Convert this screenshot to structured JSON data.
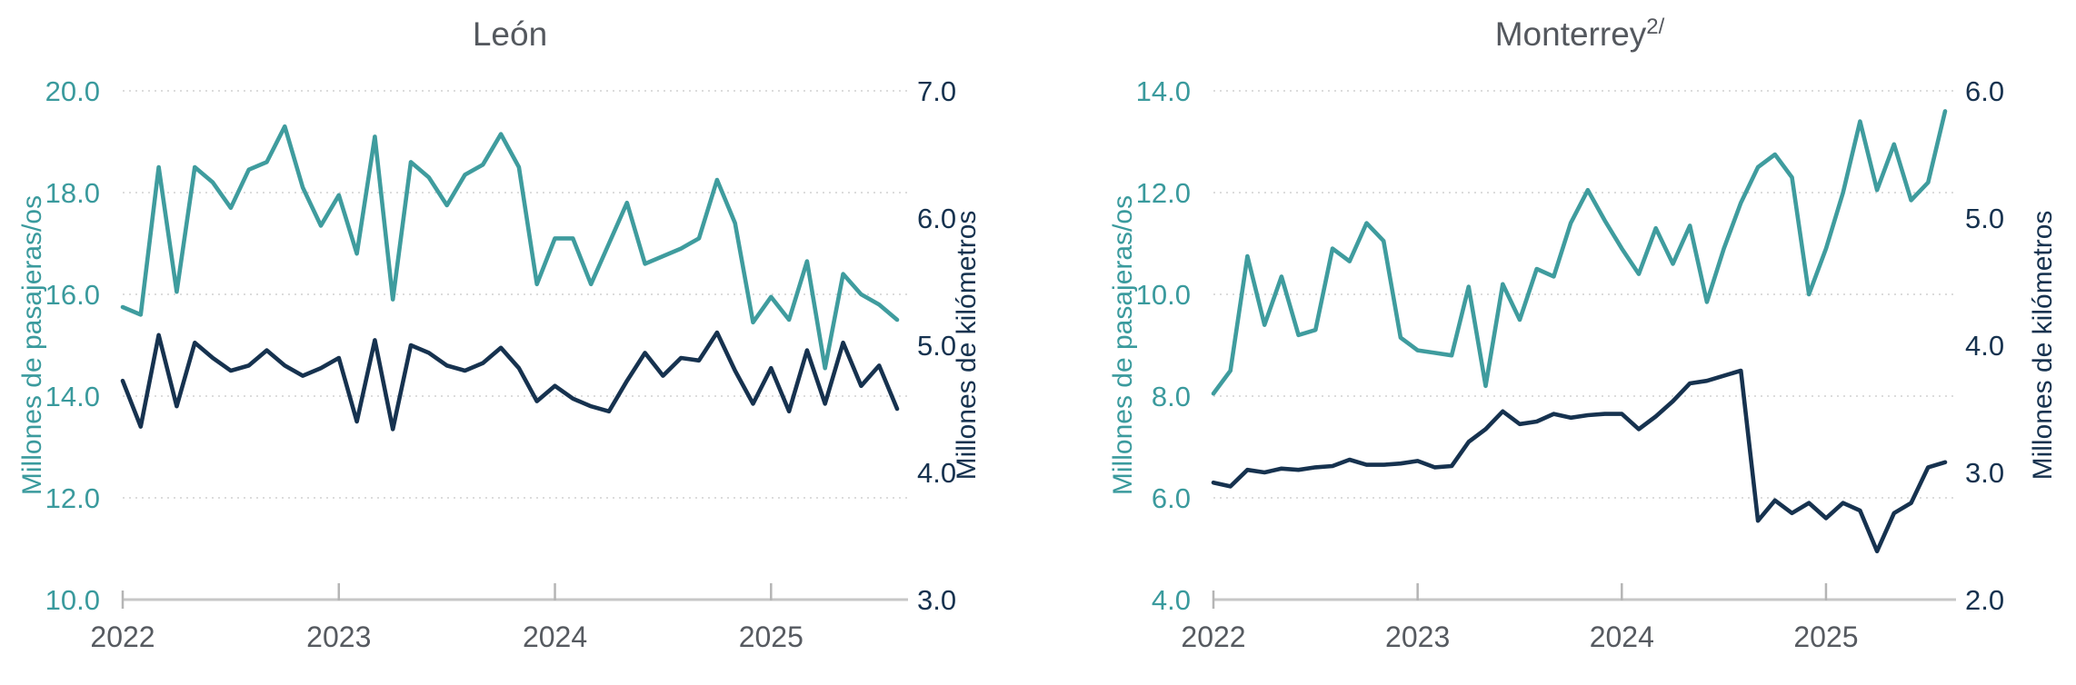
{
  "page": {
    "background": "#ffffff"
  },
  "colors": {
    "passengers_line": "#3f9c9e",
    "kilometers_line": "#16324f",
    "title_text": "#54585e",
    "axis_line": "#c7c7c7",
    "gridline": "#d0d0d0"
  },
  "chart_data": [
    {
      "type": "line",
      "title": "León",
      "title_suffix": "",
      "left_axis": {
        "title": "Millones de pasajeras/os",
        "min": 10,
        "max": 20,
        "ticks": [
          "20.0",
          "18.0",
          "16.0",
          "14.0",
          "12.0",
          "10.0"
        ],
        "color": "#3a9a9d"
      },
      "right_axis": {
        "title": "Millones de kilómetros",
        "min": 3,
        "max": 7,
        "ticks": [
          "7.0",
          "6.0",
          "5.0",
          "4.0",
          "3.0"
        ],
        "color": "#16324f"
      },
      "x_axis": {
        "ticks": [
          "2022",
          "2023",
          "2024",
          "2025"
        ],
        "tick_month_index": [
          0,
          12,
          24,
          36
        ]
      },
      "grid": "dotted horizontal at left-axis ticks",
      "legend": "none",
      "x": [
        "2022-01",
        "2022-02",
        "2022-03",
        "2022-04",
        "2022-05",
        "2022-06",
        "2022-07",
        "2022-08",
        "2022-09",
        "2022-10",
        "2022-11",
        "2022-12",
        "2023-01",
        "2023-02",
        "2023-03",
        "2023-04",
        "2023-05",
        "2023-06",
        "2023-07",
        "2023-08",
        "2023-09",
        "2023-10",
        "2023-11",
        "2023-12",
        "2024-01",
        "2024-02",
        "2024-03",
        "2024-04",
        "2024-05",
        "2024-06",
        "2024-07",
        "2024-08",
        "2024-09",
        "2024-10",
        "2024-11",
        "2024-12",
        "2025-01",
        "2025-02",
        "2025-03",
        "2025-04",
        "2025-05",
        "2025-06",
        "2025-07",
        "2025-08"
      ],
      "series": [
        {
          "name": "Millones de pasajeras/os",
          "axis": "left",
          "color": "#3f9c9e",
          "values": [
            15.75,
            15.6,
            18.5,
            16.05,
            18.5,
            18.2,
            17.7,
            18.45,
            18.6,
            19.3,
            18.1,
            17.35,
            17.95,
            16.8,
            19.1,
            15.9,
            18.6,
            18.3,
            17.75,
            18.35,
            18.55,
            19.15,
            18.5,
            16.2,
            17.1,
            17.1,
            16.2,
            17.0,
            17.8,
            16.6,
            16.75,
            16.9,
            17.1,
            18.25,
            17.4,
            15.45,
            15.95,
            15.5,
            16.65,
            14.55,
            16.4,
            16.0,
            15.8,
            15.5
          ]
        },
        {
          "name": "Millones de kilómetros",
          "axis": "right",
          "color": "#16324f",
          "values": [
            4.72,
            4.36,
            5.08,
            4.52,
            5.02,
            4.9,
            4.8,
            4.84,
            4.96,
            4.84,
            4.76,
            4.82,
            4.9,
            4.4,
            5.04,
            4.34,
            5.0,
            4.94,
            4.84,
            4.8,
            4.86,
            4.98,
            4.82,
            4.56,
            4.68,
            4.58,
            4.52,
            4.48,
            4.72,
            4.94,
            4.76,
            4.9,
            4.88,
            5.1,
            4.8,
            4.54,
            4.82,
            4.48,
            4.96,
            4.54,
            5.02,
            4.68,
            4.84,
            4.5
          ]
        }
      ]
    },
    {
      "type": "line",
      "title": "Monterrey",
      "title_suffix": "2/",
      "left_axis": {
        "title": "Millones de pasajeras/os",
        "min": 4,
        "max": 14,
        "ticks": [
          "14.0",
          "12.0",
          "10.0",
          "8.0",
          "6.0",
          "4.0"
        ],
        "color": "#3a9a9d"
      },
      "right_axis": {
        "title": "Millones de kilómetros",
        "min": 2,
        "max": 6,
        "ticks": [
          "6.0",
          "5.0",
          "4.0",
          "3.0",
          "2.0"
        ],
        "color": "#16324f"
      },
      "x_axis": {
        "ticks": [
          "2022",
          "2023",
          "2024",
          "2025"
        ],
        "tick_month_index": [
          0,
          12,
          24,
          36
        ]
      },
      "grid": "dotted horizontal at left-axis ticks",
      "legend": "none",
      "x": [
        "2022-01",
        "2022-02",
        "2022-03",
        "2022-04",
        "2022-05",
        "2022-06",
        "2022-07",
        "2022-08",
        "2022-09",
        "2022-10",
        "2022-11",
        "2022-12",
        "2023-01",
        "2023-02",
        "2023-03",
        "2023-04",
        "2023-05",
        "2023-06",
        "2023-07",
        "2023-08",
        "2023-09",
        "2023-10",
        "2023-11",
        "2023-12",
        "2024-01",
        "2024-02",
        "2024-03",
        "2024-04",
        "2024-05",
        "2024-06",
        "2024-07",
        "2024-08",
        "2024-09",
        "2024-10",
        "2024-11",
        "2024-12",
        "2025-01",
        "2025-02",
        "2025-03",
        "2025-04",
        "2025-05",
        "2025-06",
        "2025-07",
        "2025-08"
      ],
      "series": [
        {
          "name": "Millones de pasajeras/os",
          "axis": "left",
          "color": "#3f9c9e",
          "values": [
            8.05,
            8.5,
            10.75,
            9.4,
            10.35,
            9.2,
            9.3,
            10.9,
            10.65,
            11.4,
            11.05,
            9.15,
            8.9,
            8.85,
            8.8,
            10.15,
            8.2,
            10.2,
            9.5,
            10.5,
            10.35,
            11.4,
            12.05,
            11.45,
            10.9,
            10.4,
            11.3,
            10.6,
            11.35,
            9.85,
            10.9,
            11.8,
            12.5,
            12.75,
            12.3,
            10.0,
            10.9,
            12.0,
            13.4,
            12.05,
            12.95,
            11.85,
            12.2,
            13.6
          ]
        },
        {
          "name": "Millones de kilómetros",
          "axis": "right",
          "color": "#16324f",
          "values": [
            2.92,
            2.89,
            3.02,
            3.0,
            3.03,
            3.02,
            3.04,
            3.05,
            3.1,
            3.06,
            3.06,
            3.07,
            3.09,
            3.04,
            3.05,
            3.24,
            3.34,
            3.48,
            3.38,
            3.4,
            3.46,
            3.43,
            3.45,
            3.46,
            3.46,
            3.34,
            3.44,
            3.56,
            3.7,
            3.72,
            3.76,
            3.8,
            2.62,
            2.78,
            2.68,
            2.76,
            2.64,
            2.76,
            2.7,
            2.38,
            2.68,
            2.76,
            3.04,
            3.08
          ]
        }
      ]
    }
  ]
}
